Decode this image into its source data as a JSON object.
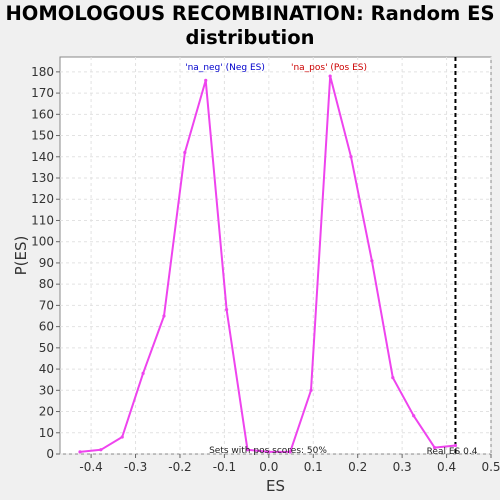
{
  "title_line1": "HOMOLOGOUS RECOMBINATION: Random ES",
  "title_line2": "distribution",
  "chart_data": {
    "type": "line",
    "xlabel": "ES",
    "ylabel": "P(ES)",
    "xlim": [
      -0.47,
      0.5
    ],
    "ylim": [
      0,
      187
    ],
    "xticks": [
      -0.4,
      -0.3,
      -0.2,
      -0.1,
      0.0,
      0.1,
      0.2,
      0.3,
      0.4,
      0.5
    ],
    "xtick_labels": [
      "-0.4",
      "-0.3",
      "-0.2",
      "-0.1",
      "0.0",
      "0.1",
      "0.2",
      "0.3",
      "0.4",
      "0.5"
    ],
    "yticks": [
      0,
      10,
      20,
      30,
      40,
      50,
      60,
      70,
      80,
      90,
      100,
      110,
      120,
      130,
      140,
      150,
      160,
      170,
      180
    ],
    "grid": true,
    "line_color": "#ee44ee",
    "x": [
      -0.425,
      -0.378,
      -0.33,
      -0.283,
      -0.236,
      -0.189,
      -0.142,
      -0.095,
      -0.048,
      0.0,
      0.048,
      0.095,
      0.138,
      0.185,
      0.232,
      0.279,
      0.326,
      0.373,
      0.42
    ],
    "y": [
      1,
      2,
      8,
      38,
      65,
      142,
      176,
      68,
      2,
      1,
      1,
      30,
      178,
      140,
      91,
      36,
      18,
      3,
      4
    ],
    "vline": {
      "x": 0.42,
      "label": "Real ES 0.4"
    },
    "annotations": {
      "neg": {
        "text": "'na_neg' (Neg ES)",
        "color": "#0000cc"
      },
      "pos": {
        "text": "'na_pos' (Pos ES)",
        "color": "#cc0000"
      },
      "sets": {
        "text": "Sets with pos scores: 50%"
      }
    }
  }
}
